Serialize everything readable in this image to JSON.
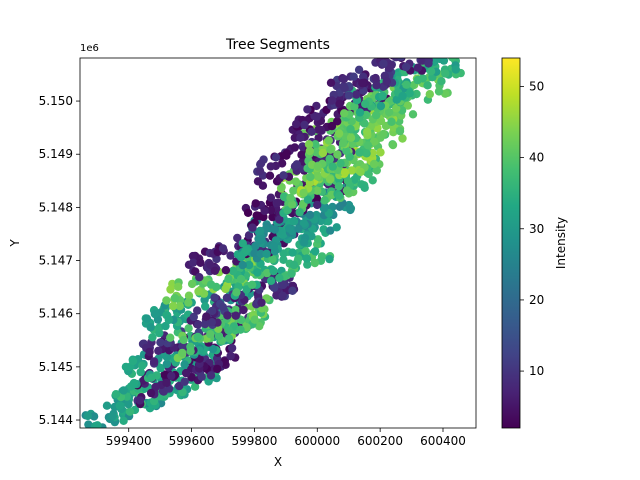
{
  "chart_data": {
    "type": "scatter",
    "title": "Tree Segments",
    "xlabel": "X",
    "ylabel": "Y",
    "y_offset_label": "1e6",
    "xlim": [
      599245,
      600505
    ],
    "ylim": [
      5.14385,
      5.15081
    ],
    "x_ticks": [
      599400,
      599600,
      599800,
      600000,
      600200,
      600400
    ],
    "x_tick_labels": [
      "599400",
      "599600",
      "599800",
      "600000",
      "600200",
      "600400"
    ],
    "y_ticks": [
      5.144,
      5.145,
      5.146,
      5.147,
      5.148,
      5.149,
      5.15
    ],
    "y_tick_labels": [
      "5.144",
      "5.145",
      "5.146",
      "5.147",
      "5.148",
      "5.149",
      "5.150"
    ],
    "colorbar": {
      "label": "Intensity",
      "colormap": "viridis",
      "range": [
        2,
        54
      ],
      "ticks": [
        10,
        20,
        30,
        40,
        50
      ],
      "tick_labels": [
        "10",
        "20",
        "30",
        "40",
        "50"
      ]
    },
    "segments": [
      {
        "x": 599430,
        "y": 5.14435,
        "intensity": 30
      },
      {
        "x": 599520,
        "y": 5.14465,
        "intensity": 34
      },
      {
        "x": 599580,
        "y": 5.1449,
        "intensity": 6
      },
      {
        "x": 599560,
        "y": 5.14525,
        "intensity": 32
      },
      {
        "x": 599620,
        "y": 5.1456,
        "intensity": 8
      },
      {
        "x": 599700,
        "y": 5.14575,
        "intensity": 40
      },
      {
        "x": 599620,
        "y": 5.14615,
        "intensity": 32
      },
      {
        "x": 599760,
        "y": 5.14625,
        "intensity": 8
      },
      {
        "x": 599680,
        "y": 5.14665,
        "intensity": 42
      },
      {
        "x": 599880,
        "y": 5.1469,
        "intensity": 36
      },
      {
        "x": 599760,
        "y": 5.1472,
        "intensity": 6
      },
      {
        "x": 599900,
        "y": 5.14745,
        "intensity": 30
      },
      {
        "x": 599950,
        "y": 5.14785,
        "intensity": 28
      },
      {
        "x": 599940,
        "y": 5.14815,
        "intensity": 4
      },
      {
        "x": 600050,
        "y": 5.14835,
        "intensity": 38
      },
      {
        "x": 600040,
        "y": 5.1487,
        "intensity": 44
      },
      {
        "x": 599960,
        "y": 5.14895,
        "intensity": 6
      },
      {
        "x": 600120,
        "y": 5.14915,
        "intensity": 40
      },
      {
        "x": 600130,
        "y": 5.14955,
        "intensity": 42
      },
      {
        "x": 600080,
        "y": 5.14985,
        "intensity": 5
      },
      {
        "x": 600240,
        "y": 5.15,
        "intensity": 40
      },
      {
        "x": 600280,
        "y": 5.15035,
        "intensity": 34
      },
      {
        "x": 600200,
        "y": 5.1505,
        "intensity": 8
      }
    ]
  }
}
